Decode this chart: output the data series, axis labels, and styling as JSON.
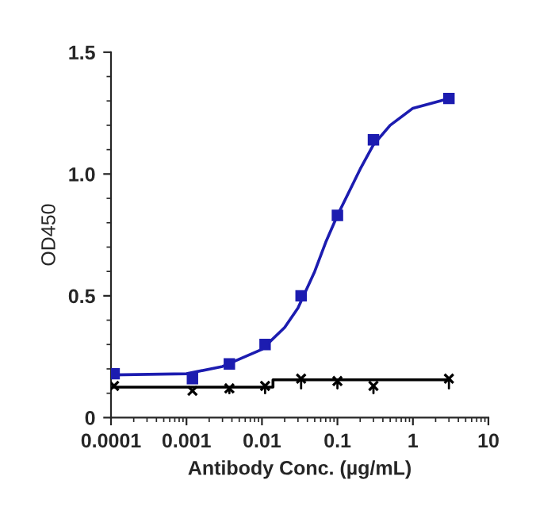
{
  "chart_data": {
    "type": "line",
    "xlabel": "Antibody Conc. (µg/mL)",
    "ylabel": "OD450",
    "log": "x",
    "xlim": [
      0.0001,
      10
    ],
    "xticks": [
      0.0001,
      0.001,
      0.01,
      0.1,
      1,
      10
    ],
    "ylim": [
      0,
      1.5
    ],
    "yticks": [
      0,
      {
        "value": 0.5,
        "label": "0.5"
      },
      {
        "value": 1,
        "label": "1.0"
      },
      1.5
    ],
    "grid": false,
    "legend": false,
    "series": [
      {
        "type": "scatter",
        "color": "#1c1cb0",
        "marker": "square",
        "x": [
          0.00011,
          0.0012,
          0.0037,
          0.011,
          0.033,
          0.1,
          0.3,
          3
        ],
        "values": [
          0.18,
          0.16,
          0.22,
          0.3,
          0.5,
          0.83,
          1.14,
          1.31
        ]
      },
      {
        "color": "#1c1cb0",
        "marker": "none",
        "x": [
          0.0001,
          0.001,
          0.003,
          0.01,
          0.02,
          0.03,
          0.05,
          0.07,
          0.1,
          0.2,
          0.3,
          0.5,
          1,
          3
        ],
        "values": [
          0.175,
          0.18,
          0.21,
          0.28,
          0.37,
          0.45,
          0.6,
          0.72,
          0.83,
          1.02,
          1.12,
          1.2,
          1.27,
          1.31
        ]
      },
      {
        "type": "scatter",
        "color": "#000000",
        "marker": "cross",
        "x": [
          0.00011,
          0.0012,
          0.0037,
          0.011,
          0.033,
          0.1,
          0.3,
          3
        ],
        "values": [
          0.13,
          0.11,
          0.12,
          0.13,
          0.16,
          0.15,
          0.13,
          0.16
        ],
        "errors": [
          null,
          null,
          [
            0.1,
            0.12
          ],
          [
            0.1,
            0.13
          ],
          [
            0.12,
            0.16
          ],
          [
            0.12,
            0.15
          ],
          [
            0.1,
            0.13
          ],
          [
            0.12,
            0.16
          ]
        ]
      },
      {
        "color": "#000000",
        "marker": "none",
        "x": [
          0.0001,
          0.014,
          0.014,
          3
        ],
        "values": [
          0.125,
          0.125,
          0.155,
          0.155
        ]
      }
    ]
  }
}
